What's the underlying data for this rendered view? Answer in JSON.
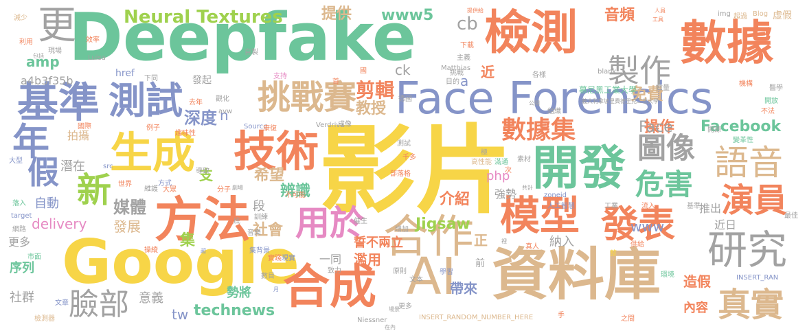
{
  "palette": {
    "green": "#6cc59b",
    "orange": "#f2845c",
    "yellow": "#f7d547",
    "blue": "#8594c8",
    "tan": "#dcb88e",
    "gray": "#a2a2a2",
    "pink": "#e68ac3",
    "lime": "#9fd14e"
  },
  "words": [
    {
      "text": "Deepfake",
      "color": "#6cc59b"
    },
    {
      "text": "影片",
      "color": "#f7d547"
    },
    {
      "text": "Face Forensics",
      "color": "#8594c8"
    },
    {
      "text": "資料庫",
      "color": "#dcb88e"
    },
    {
      "text": "Google",
      "color": "#f7d547"
    },
    {
      "text": "檢測",
      "color": "#f2845c"
    },
    {
      "text": "數據",
      "color": "#f2845c"
    },
    {
      "text": "AI",
      "color": "#dcb88e"
    },
    {
      "text": "合成",
      "color": "#f2845c"
    },
    {
      "text": "方法",
      "color": "#f2845c"
    },
    {
      "text": "開發",
      "color": "#6cc59b"
    },
    {
      "text": "技術",
      "color": "#f2845c"
    },
    {
      "text": "生成",
      "color": "#f7d547"
    },
    {
      "text": "合作",
      "color": "#dcb88e"
    },
    {
      "text": "模型",
      "color": "#f2845c"
    },
    {
      "text": "研究",
      "color": "#a2a2a2"
    },
    {
      "text": "基準",
      "color": "#8594c8"
    },
    {
      "text": "測試",
      "color": "#8594c8"
    },
    {
      "text": "製作",
      "color": "#a2a2a2"
    },
    {
      "text": "挑戰賽",
      "color": "#dcb88e"
    },
    {
      "text": "發表",
      "color": "#f2845c"
    },
    {
      "text": "更",
      "color": "#a2a2a2"
    },
    {
      "text": "年",
      "color": "#8594c8"
    },
    {
      "text": "語音",
      "color": "#dcb88e"
    },
    {
      "text": "真實",
      "color": "#dcb88e"
    },
    {
      "text": "演員",
      "color": "#f2845c"
    },
    {
      "text": "危害",
      "color": "#6cc59b"
    },
    {
      "text": "圖像",
      "color": "#a2a2a2"
    },
    {
      "text": "數據集",
      "color": "#f2845c"
    },
    {
      "text": "用於",
      "color": "#e68ac3"
    },
    {
      "text": "新",
      "color": "#9fd14e"
    },
    {
      "text": "假",
      "color": "#8594c8"
    },
    {
      "text": "臉部",
      "color": "#a2a2a2"
    },
    {
      "text": "Neural Textures",
      "color": "#9fd14e"
    },
    {
      "text": "剪輯",
      "color": "#f2845c"
    },
    {
      "text": "教授",
      "color": "#dcb88e"
    },
    {
      "text": "Facebook",
      "color": "#6cc59b"
    },
    {
      "text": "technews",
      "color": "#6cc59b"
    },
    {
      "text": "Jigsaw",
      "color": "#9fd14e"
    },
    {
      "text": "免費",
      "color": "#dcb88e"
    },
    {
      "text": "www5",
      "color": "#6cc59b"
    },
    {
      "text": "提供",
      "color": "#dcb88e"
    },
    {
      "text": "音頻",
      "color": "#f2845c"
    },
    {
      "text": "cb",
      "color": "#a2a2a2"
    },
    {
      "text": "amp",
      "color": "#6cc59b"
    },
    {
      "text": "a4b3f35b",
      "color": "#a2a2a2"
    },
    {
      "text": "深度",
      "color": "#8594c8"
    },
    {
      "text": "媒體",
      "color": "#a2a2a2"
    },
    {
      "text": "社會",
      "color": "#dcb88e"
    },
    {
      "text": "希望",
      "color": "#dcb88e"
    },
    {
      "text": "辨識",
      "color": "#6cc59b"
    },
    {
      "text": "介紹",
      "color": "#f2845c"
    },
    {
      "text": "操作",
      "color": "#f2845c"
    },
    {
      "text": "Face",
      "color": "#a2a2a2"
    },
    {
      "text": "www",
      "color": "#8594c8"
    },
    {
      "text": "近日",
      "color": "#a2a2a2"
    },
    {
      "text": "推出",
      "color": "#a2a2a2"
    },
    {
      "text": "自動",
      "color": "#8594c8"
    },
    {
      "text": "拍攝",
      "color": "#dcb88e"
    },
    {
      "text": "潛在",
      "color": "#a2a2a2"
    },
    {
      "text": "delivery",
      "color": "#e68ac3"
    },
    {
      "text": "發展",
      "color": "#dcb88e"
    },
    {
      "text": "集",
      "color": "#9fd14e"
    },
    {
      "text": "更多",
      "color": "#a2a2a2"
    },
    {
      "text": "序列",
      "color": "#6cc59b"
    },
    {
      "text": "社群",
      "color": "#a2a2a2"
    },
    {
      "text": "意義",
      "color": "#a2a2a2"
    },
    {
      "text": "tw",
      "color": "#8594c8"
    },
    {
      "text": "勢將",
      "color": "#6cc59b"
    },
    {
      "text": "濫用",
      "color": "#f2845c"
    },
    {
      "text": "帶來",
      "color": "#8594c8"
    },
    {
      "text": "造假",
      "color": "#f2845c"
    },
    {
      "text": "內容",
      "color": "#f2845c"
    },
    {
      "text": "納入",
      "color": "#a2a2a2"
    },
    {
      "text": "php",
      "color": "#e68ac3"
    },
    {
      "text": "段",
      "color": "#a2a2a2"
    },
    {
      "text": "支",
      "color": "#9fd14e"
    },
    {
      "text": "正",
      "color": "#dcb88e"
    },
    {
      "text": "誓不兩立",
      "color": "#f2845c"
    },
    {
      "text": "強勢",
      "color": "#a2a2a2"
    },
    {
      "text": "一同",
      "color": "#a2a2a2"
    },
    {
      "text": "前",
      "color": "#a2a2a2"
    },
    {
      "text": "近",
      "color": "#f2845c"
    },
    {
      "text": "href",
      "color": "#8594c8"
    },
    {
      "text": "發起",
      "color": "#a2a2a2"
    },
    {
      "text": "ck",
      "color": "#a2a2a2"
    },
    {
      "text": "n",
      "color": "#8594c8"
    },
    {
      "text": "a",
      "color": "#8594c8"
    },
    {
      "text": "Source",
      "color": "#8594c8"
    },
    {
      "text": "zoneid",
      "color": "#8594c8"
    },
    {
      "text": "INSERT_RANDOM_NUMBER_HERE",
      "color": "#dcb88e"
    },
    {
      "text": "INSERT_RAN",
      "color": "#8594c8"
    },
    {
      "text": "Niessner",
      "color": "#a2a2a2"
    },
    {
      "text": "Matthias",
      "color": "#a2a2a2"
    },
    {
      "text": "Verdriva",
      "color": "#a2a2a2"
    },
    {
      "text": "Luisa",
      "color": "#a2a2a2"
    },
    {
      "text": "Blog",
      "color": "#dcb88e"
    },
    {
      "text": "img",
      "color": "#a2a2a2"
    },
    {
      "text": "blank",
      "color": "#a2a2a2"
    },
    {
      "text": "target",
      "color": "#8594c8"
    },
    {
      "text": "src",
      "color": "#8594c8"
    },
    {
      "text": "avw",
      "color": "#a2a2a2"
    },
    {
      "text": "虛假",
      "color": "#dcb88e"
    },
    {
      "text": "超過",
      "color": "#dcb88e"
    },
    {
      "text": "人員",
      "color": "#f2845c"
    },
    {
      "text": "工具",
      "color": "#f2845c"
    },
    {
      "text": "提供給",
      "color": "#f2845c"
    },
    {
      "text": "下載",
      "color": "#f2845c"
    },
    {
      "text": "主義",
      "color": "#a2a2a2"
    },
    {
      "text": "各樣",
      "color": "#a2a2a2"
    },
    {
      "text": "數量",
      "color": "#a2a2a2"
    },
    {
      "text": "機構",
      "color": "#f2845c"
    },
    {
      "text": "醫學",
      "color": "#a2a2a2"
    },
    {
      "text": "開放",
      "color": "#6cc59b"
    },
    {
      "text": "不法",
      "color": "#f2845c"
    },
    {
      "text": "開源",
      "color": "#a2a2a2"
    },
    {
      "text": "變革性",
      "color": "#6cc59b"
    },
    {
      "text": "慕尼黑工業大學",
      "color": "#6cc59b"
    },
    {
      "text": "義大利拿坡里費德里克二世大學",
      "color": "#a2a2a2"
    },
    {
      "text": "公開",
      "color": "#a2a2a2"
    },
    {
      "text": "組織",
      "color": "#a2a2a2"
    },
    {
      "text": "目的",
      "color": "#a2a2a2"
    },
    {
      "text": "挑戰",
      "color": "#a2a2a2"
    },
    {
      "text": "國",
      "color": "#f2845c"
    },
    {
      "text": "首",
      "color": "#f2845c"
    },
    {
      "text": "支持",
      "color": "#e68ac3"
    },
    {
      "text": "觀化",
      "color": "#a2a2a2"
    },
    {
      "text": "下同",
      "color": "#a2a2a2"
    },
    {
      "text": "效率",
      "color": "#f2845c"
    },
    {
      "text": "自製",
      "color": "#a2a2a2"
    },
    {
      "text": "減少",
      "color": "#dcb88e"
    },
    {
      "text": "利用",
      "color": "#f2845c"
    },
    {
      "text": "現場",
      "color": "#a2a2a2"
    },
    {
      "text": "包括",
      "color": "#a2a2a2"
    },
    {
      "text": "去年",
      "color": "#f2845c"
    },
    {
      "text": "趣味性",
      "color": "#f2845c"
    },
    {
      "text": "例子",
      "color": "#f2845c"
    },
    {
      "text": "國際",
      "color": "#f2845c"
    },
    {
      "text": "大型",
      "color": "#8594c8"
    },
    {
      "text": "導致",
      "color": "#a2a2a2"
    },
    {
      "text": "世界",
      "color": "#f2845c"
    },
    {
      "text": "方式",
      "color": "#8594c8"
    },
    {
      "text": "維護",
      "color": "#a2a2a2"
    },
    {
      "text": "大眾",
      "color": "#f2845c"
    },
    {
      "text": "落入",
      "color": "#6cc59b"
    },
    {
      "text": "網路",
      "color": "#a2a2a2"
    },
    {
      "text": "操縱",
      "color": "#f2845c"
    },
    {
      "text": "市面",
      "color": "#6cc59b"
    },
    {
      "text": "文章",
      "color": "#8594c8"
    },
    {
      "text": "檢測器",
      "color": "#dcb88e"
    },
    {
      "text": "分子",
      "color": "#f2845c"
    },
    {
      "text": "劇場",
      "color": "#a2a2a2"
    },
    {
      "text": "不可能",
      "color": "#f2845c"
    },
    {
      "text": "部落格",
      "color": "#f2845c"
    },
    {
      "text": "千多",
      "color": "#f2845c"
    },
    {
      "text": "高性能",
      "color": "#dcb88e"
    },
    {
      "text": "極",
      "color": "#a2a2a2"
    },
    {
      "text": "次",
      "color": "#f2845c"
    },
    {
      "text": "素材",
      "color": "#a2a2a2"
    },
    {
      "text": "共計",
      "color": "#a2a2a2"
    },
    {
      "text": "人工智慧",
      "color": "#8594c8"
    },
    {
      "text": "工業",
      "color": "#a2a2a2"
    },
    {
      "text": "流入",
      "color": "#f2845c"
    },
    {
      "text": "基準",
      "color": "#a2a2a2"
    },
    {
      "text": "最佳",
      "color": "#a2a2a2"
    },
    {
      "text": "催生",
      "color": "#a2a2a2"
    },
    {
      "text": "增加",
      "color": "#a2a2a2"
    },
    {
      "text": "現實",
      "color": "#8594c8"
    },
    {
      "text": "致力",
      "color": "#a2a2a2"
    },
    {
      "text": "原則",
      "color": "#a2a2a2"
    },
    {
      "text": "文本",
      "color": "#a2a2a2"
    },
    {
      "text": "學習",
      "color": "#8594c8"
    },
    {
      "text": "數目",
      "color": "#a2a2a2"
    },
    {
      "text": "月",
      "color": "#8594c8"
    },
    {
      "text": "實踐",
      "color": "#f2845c"
    },
    {
      "text": "集背景",
      "color": "#8594c8"
    },
    {
      "text": "音樂",
      "color": "#a2a2a2"
    },
    {
      "text": "底",
      "color": "#a2a2a2"
    },
    {
      "text": "訓練",
      "color": "#a2a2a2"
    },
    {
      "text": "德國",
      "color": "#a2a2a2"
    },
    {
      "text": "成像",
      "color": "#a2a2a2"
    },
    {
      "text": "測試",
      "color": "#a2a2a2"
    },
    {
      "text": "滿通",
      "color": "#6cc59b"
    },
    {
      "text": "真人",
      "color": "#f2845c"
    },
    {
      "text": "整",
      "color": "#f7d547"
    },
    {
      "text": "供給",
      "color": "#f2845c"
    },
    {
      "text": "環境",
      "color": "#6cc59b"
    },
    {
      "text": "之間",
      "color": "#f2845c"
    },
    {
      "text": "手",
      "color": "#f2845c"
    },
    {
      "text": "刻",
      "color": "#dcb88e"
    },
    {
      "text": "更多",
      "color": "#a2a2a2"
    },
    {
      "text": "場景",
      "color": "#a2a2a2"
    },
    {
      "text": "在內",
      "color": "#a2a2a2"
    },
    {
      "text": "超",
      "color": "#8594c8"
    },
    {
      "text": "康復",
      "color": "#f2845c"
    },
    {
      "text": "裡",
      "color": "#a2a2a2"
    }
  ]
}
